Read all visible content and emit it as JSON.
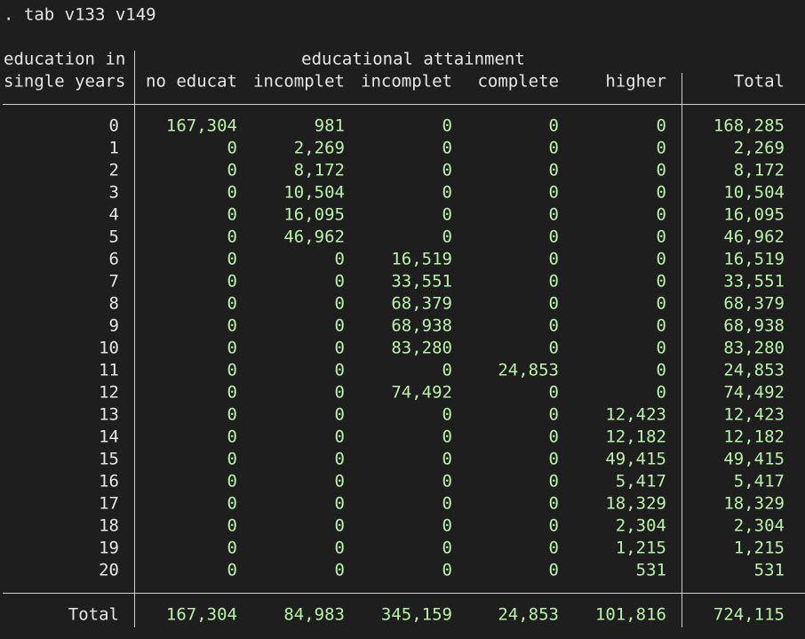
{
  "command": ". tab v133 v149",
  "table": {
    "row_header": [
      "education in",
      "single years"
    ],
    "group_title": "educational attainment",
    "columns": [
      "no educat",
      "incomplet",
      "incomplet",
      "complete",
      "higher",
      "Total"
    ],
    "rows": [
      {
        "label": "0",
        "cells": [
          "167,304",
          "981",
          "0",
          "0",
          "0",
          "168,285"
        ]
      },
      {
        "label": "1",
        "cells": [
          "0",
          "2,269",
          "0",
          "0",
          "0",
          "2,269"
        ]
      },
      {
        "label": "2",
        "cells": [
          "0",
          "8,172",
          "0",
          "0",
          "0",
          "8,172"
        ]
      },
      {
        "label": "3",
        "cells": [
          "0",
          "10,504",
          "0",
          "0",
          "0",
          "10,504"
        ]
      },
      {
        "label": "4",
        "cells": [
          "0",
          "16,095",
          "0",
          "0",
          "0",
          "16,095"
        ]
      },
      {
        "label": "5",
        "cells": [
          "0",
          "46,962",
          "0",
          "0",
          "0",
          "46,962"
        ]
      },
      {
        "label": "6",
        "cells": [
          "0",
          "0",
          "16,519",
          "0",
          "0",
          "16,519"
        ]
      },
      {
        "label": "7",
        "cells": [
          "0",
          "0",
          "33,551",
          "0",
          "0",
          "33,551"
        ]
      },
      {
        "label": "8",
        "cells": [
          "0",
          "0",
          "68,379",
          "0",
          "0",
          "68,379"
        ]
      },
      {
        "label": "9",
        "cells": [
          "0",
          "0",
          "68,938",
          "0",
          "0",
          "68,938"
        ]
      },
      {
        "label": "10",
        "cells": [
          "0",
          "0",
          "83,280",
          "0",
          "0",
          "83,280"
        ]
      },
      {
        "label": "11",
        "cells": [
          "0",
          "0",
          "0",
          "24,853",
          "0",
          "24,853"
        ]
      },
      {
        "label": "12",
        "cells": [
          "0",
          "0",
          "74,492",
          "0",
          "0",
          "74,492"
        ]
      },
      {
        "label": "13",
        "cells": [
          "0",
          "0",
          "0",
          "0",
          "12,423",
          "12,423"
        ]
      },
      {
        "label": "14",
        "cells": [
          "0",
          "0",
          "0",
          "0",
          "12,182",
          "12,182"
        ]
      },
      {
        "label": "15",
        "cells": [
          "0",
          "0",
          "0",
          "0",
          "49,415",
          "49,415"
        ]
      },
      {
        "label": "16",
        "cells": [
          "0",
          "0",
          "0",
          "0",
          "5,417",
          "5,417"
        ]
      },
      {
        "label": "17",
        "cells": [
          "0",
          "0",
          "0",
          "0",
          "18,329",
          "18,329"
        ]
      },
      {
        "label": "18",
        "cells": [
          "0",
          "0",
          "0",
          "0",
          "2,304",
          "2,304"
        ]
      },
      {
        "label": "19",
        "cells": [
          "0",
          "0",
          "0",
          "0",
          "1,215",
          "1,215"
        ]
      },
      {
        "label": "20",
        "cells": [
          "0",
          "0",
          "0",
          "0",
          "531",
          "531"
        ]
      }
    ],
    "total": {
      "label": "Total",
      "cells": [
        "167,304",
        "84,983",
        "345,159",
        "24,853",
        "101,816",
        "724,115"
      ]
    }
  }
}
